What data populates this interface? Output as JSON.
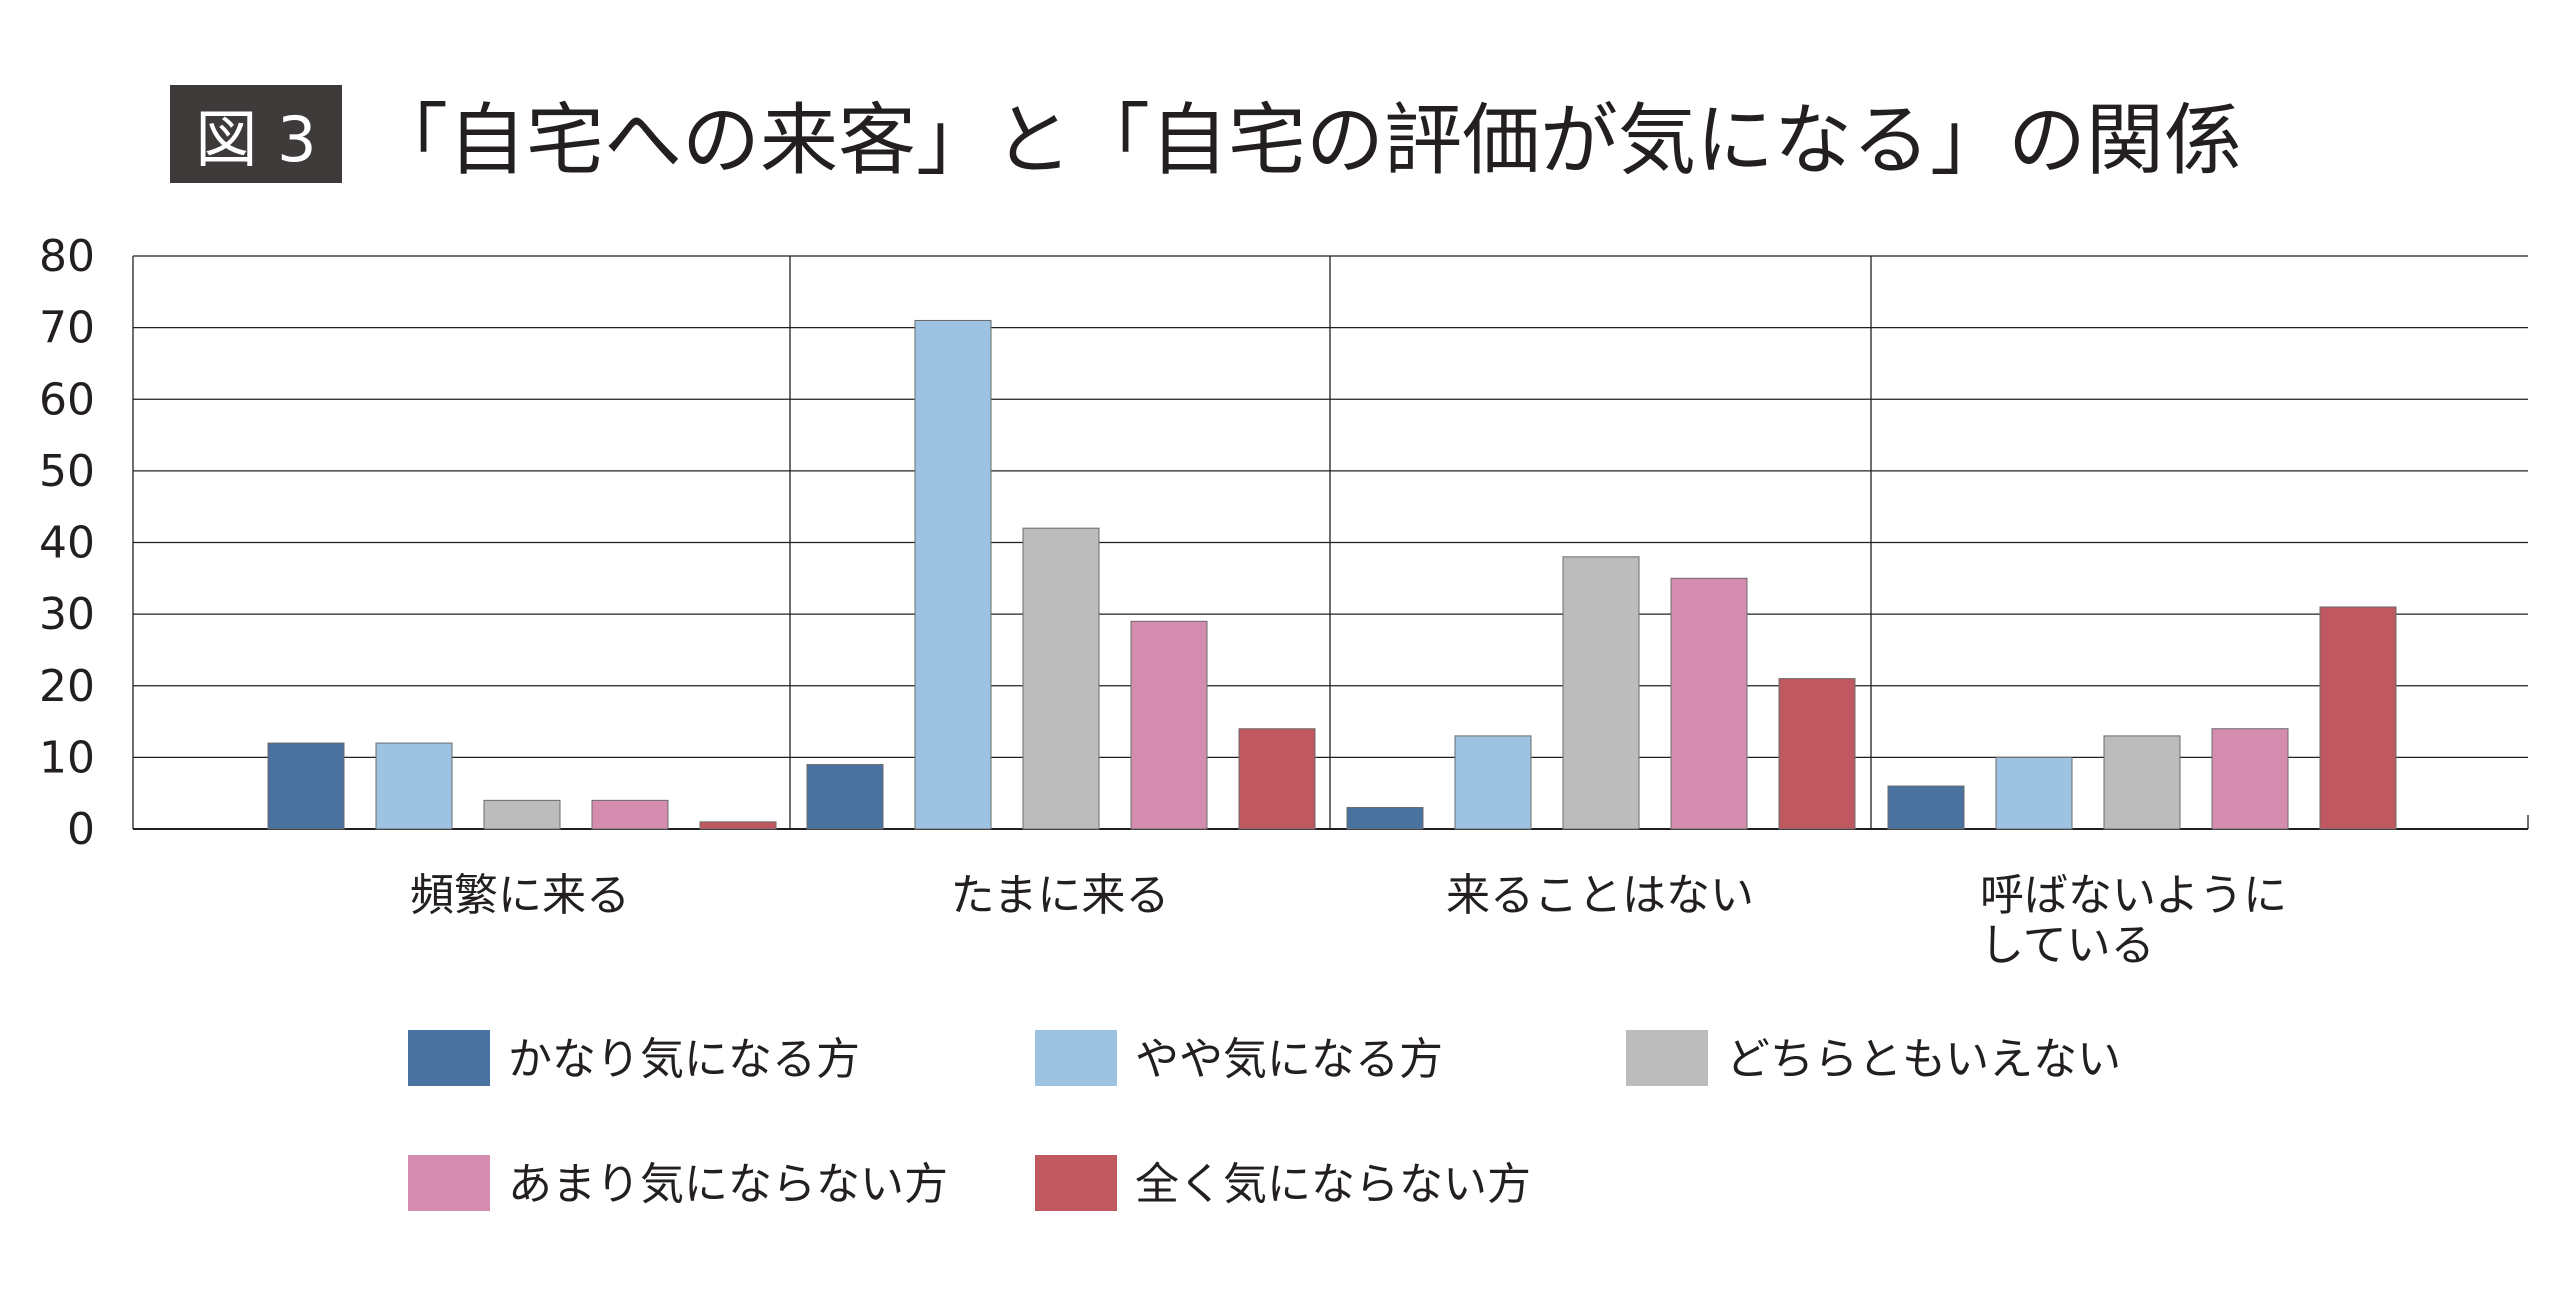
{
  "figure_label": "図 3",
  "title": "「自宅への来客」と「自宅の評価が気になる」の関係",
  "chart_data": {
    "type": "bar",
    "title": "「自宅への来客」と「自宅の評価が気になる」の関係",
    "categories": [
      "頻繁に来る",
      "たまに来る",
      "来ることはない",
      "呼ばないようにしている"
    ],
    "category_lines": [
      [
        "頻繁に来る"
      ],
      [
        "たまに来る"
      ],
      [
        "来ることはない"
      ],
      [
        "呼ばないように",
        "している"
      ]
    ],
    "series": [
      {
        "name": "かなり気になる方",
        "color": "#4a72a0",
        "values": [
          12,
          9,
          3,
          6
        ]
      },
      {
        "name": "やや気になる方",
        "color": "#9ec3e2",
        "values": [
          12,
          71,
          13,
          10
        ]
      },
      {
        "name": "どちらともいえない",
        "color": "#bcbcbc",
        "values": [
          4,
          42,
          38,
          13
        ]
      },
      {
        "name": "あまり気にならない方",
        "color": "#d58daf",
        "values": [
          4,
          29,
          35,
          14
        ]
      },
      {
        "name": "全く気にならない方",
        "color": "#c05861",
        "values": [
          1,
          14,
          21,
          31
        ]
      }
    ],
    "ylim": [
      0,
      80
    ],
    "yticks": [
      0,
      10,
      20,
      30,
      40,
      50,
      60,
      70,
      80
    ],
    "grid": true,
    "legend_position": "bottom"
  }
}
